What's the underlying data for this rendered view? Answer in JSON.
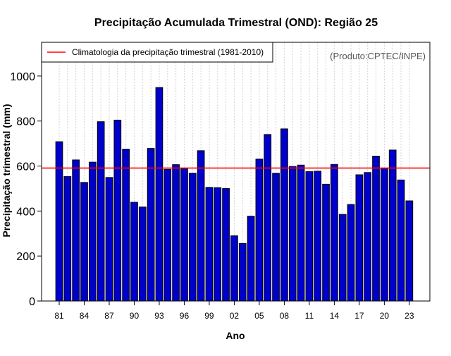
{
  "chart_data": {
    "type": "bar",
    "title": "Precipitação Acumulada Trimestral (OND): Região 25",
    "xlabel": "Ano",
    "ylabel": "Precipitação trimestral (mm)",
    "source_note": "(Produto:CPTEC/INPE)",
    "legend": {
      "label": "Climatologia da precipitação trimestral (1981-2010)",
      "placement": "top-left"
    },
    "categories": [
      "81",
      "82",
      "83",
      "84",
      "85",
      "86",
      "87",
      "88",
      "89",
      "90",
      "91",
      "92",
      "93",
      "94",
      "95",
      "96",
      "97",
      "98",
      "99",
      "00",
      "01",
      "02",
      "03",
      "04",
      "05",
      "06",
      "07",
      "08",
      "09",
      "10",
      "11",
      "12",
      "13",
      "14",
      "15",
      "16",
      "17",
      "18",
      "19",
      "20",
      "21",
      "22",
      "23"
    ],
    "tick_labels": [
      "81",
      "84",
      "87",
      "90",
      "93",
      "96",
      "99",
      "02",
      "05",
      "08",
      "11",
      "14",
      "17",
      "20",
      "23"
    ],
    "values": [
      708,
      553,
      627,
      527,
      617,
      797,
      549,
      804,
      675,
      439,
      418,
      678,
      949,
      585,
      606,
      588,
      568,
      668,
      505,
      504,
      500,
      290,
      256,
      377,
      631,
      740,
      568,
      765,
      598,
      604,
      575,
      577,
      519,
      607,
      385,
      429,
      561,
      571,
      644,
      590,
      671,
      538,
      445
    ],
    "climatology": 591,
    "ylim": [
      0,
      1150
    ],
    "yticks": [
      0,
      200,
      400,
      600,
      800,
      1000
    ],
    "grid": true,
    "colors": {
      "bar": "#0000cd",
      "bar_edge": "#000000",
      "climatology_line": "#ff0000",
      "grid": "#d3d3d3"
    }
  }
}
